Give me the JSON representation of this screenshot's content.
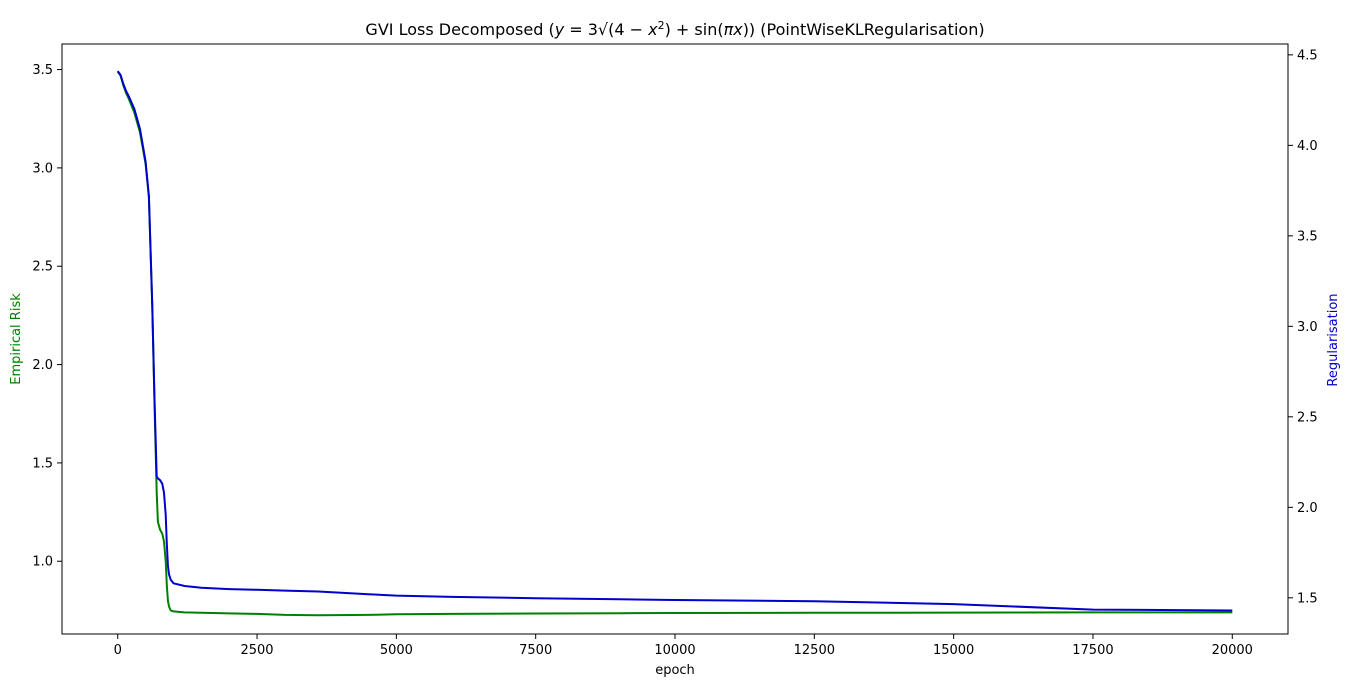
{
  "chart_data": {
    "type": "line",
    "title": "GVI Loss Decomposed (y = 3√(4 − x²) + sin(πx)) (PointWiseKLRegularisation)",
    "xlabel": "epoch",
    "ylabel_left": "Empirical Risk",
    "ylabel_right": "Regularisation",
    "xlim": [
      -1000,
      21000
    ],
    "ylim_left": [
      0.63,
      3.63
    ],
    "ylim_right": [
      1.3,
      4.56
    ],
    "x_ticks": [
      0,
      2500,
      5000,
      7500,
      10000,
      12500,
      15000,
      17500,
      20000
    ],
    "y_left_ticks": [
      1.0,
      1.5,
      2.0,
      2.5,
      3.0,
      3.5
    ],
    "y_right_ticks": [
      1.5,
      2.0,
      2.5,
      3.0,
      3.5,
      4.0,
      4.5
    ],
    "grid": false,
    "series": [
      {
        "name": "Empirical Risk",
        "axis": "left",
        "color": "#008000",
        "x": [
          0,
          50,
          100,
          150,
          200,
          300,
          400,
          500,
          560,
          620,
          660,
          700,
          720,
          760,
          800,
          830,
          860,
          880,
          900,
          920,
          950,
          1000,
          1200,
          1500,
          2000,
          2500,
          3000,
          3600,
          4500,
          5000,
          6000,
          7500,
          9000,
          10000,
          12500,
          15000,
          17500,
          20000
        ],
        "y": [
          3.49,
          3.47,
          3.42,
          3.38,
          3.35,
          3.28,
          3.18,
          3.02,
          2.85,
          2.3,
          1.8,
          1.35,
          1.2,
          1.16,
          1.14,
          1.1,
          1.0,
          0.88,
          0.8,
          0.77,
          0.75,
          0.745,
          0.74,
          0.738,
          0.735,
          0.732,
          0.727,
          0.725,
          0.727,
          0.73,
          0.732,
          0.734,
          0.736,
          0.737,
          0.738,
          0.739,
          0.74,
          0.74
        ]
      },
      {
        "name": "Regularisation",
        "axis": "right",
        "color": "#0000cc",
        "x": [
          0,
          50,
          100,
          150,
          200,
          300,
          400,
          500,
          560,
          620,
          660,
          700,
          720,
          760,
          800,
          830,
          860,
          880,
          900,
          920,
          950,
          1000,
          1200,
          1500,
          2000,
          2500,
          3000,
          3600,
          4500,
          5000,
          6000,
          7500,
          9000,
          10000,
          12500,
          15000,
          17500,
          20000
        ],
        "y": [
          4.41,
          4.39,
          4.34,
          4.3,
          4.27,
          4.2,
          4.09,
          3.91,
          3.72,
          3.1,
          2.6,
          2.17,
          2.16,
          2.15,
          2.13,
          2.08,
          1.96,
          1.8,
          1.68,
          1.63,
          1.6,
          1.58,
          1.565,
          1.555,
          1.548,
          1.544,
          1.54,
          1.535,
          1.52,
          1.512,
          1.505,
          1.498,
          1.492,
          1.488,
          1.481,
          1.465,
          1.435,
          1.43
        ]
      }
    ]
  }
}
